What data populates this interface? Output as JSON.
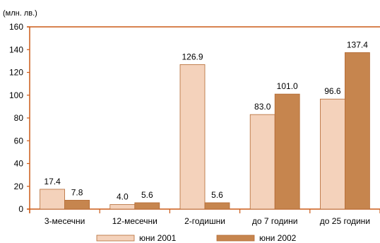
{
  "chart_data": {
    "type": "bar",
    "unit_label": "(млн. лв.)",
    "title": "",
    "xlabel": "",
    "ylabel": "",
    "categories": [
      "3-месечни",
      "12-месечни",
      "2-годишни",
      "до 7 години",
      "до 25 години"
    ],
    "series": [
      {
        "name": "юни 2001",
        "values": [
          17.4,
          4.0,
          126.9,
          83.0,
          96.6
        ],
        "labels": [
          "17.4",
          "4.0",
          "126.9",
          "83.0",
          "96.6"
        ],
        "color": "#f4d2bb"
      },
      {
        "name": "юни 2002",
        "values": [
          7.8,
          5.6,
          5.6,
          101.0,
          137.4
        ],
        "labels": [
          "7.8",
          "5.6",
          "5.6",
          "101.0",
          "137.4"
        ],
        "color": "#c6854e"
      }
    ],
    "ylim": [
      0,
      160
    ],
    "yticks": [
      0,
      20,
      40,
      60,
      80,
      100,
      120,
      140,
      160
    ],
    "grid": false,
    "axis_color": "#cc5a17",
    "legend_position": "bottom"
  }
}
